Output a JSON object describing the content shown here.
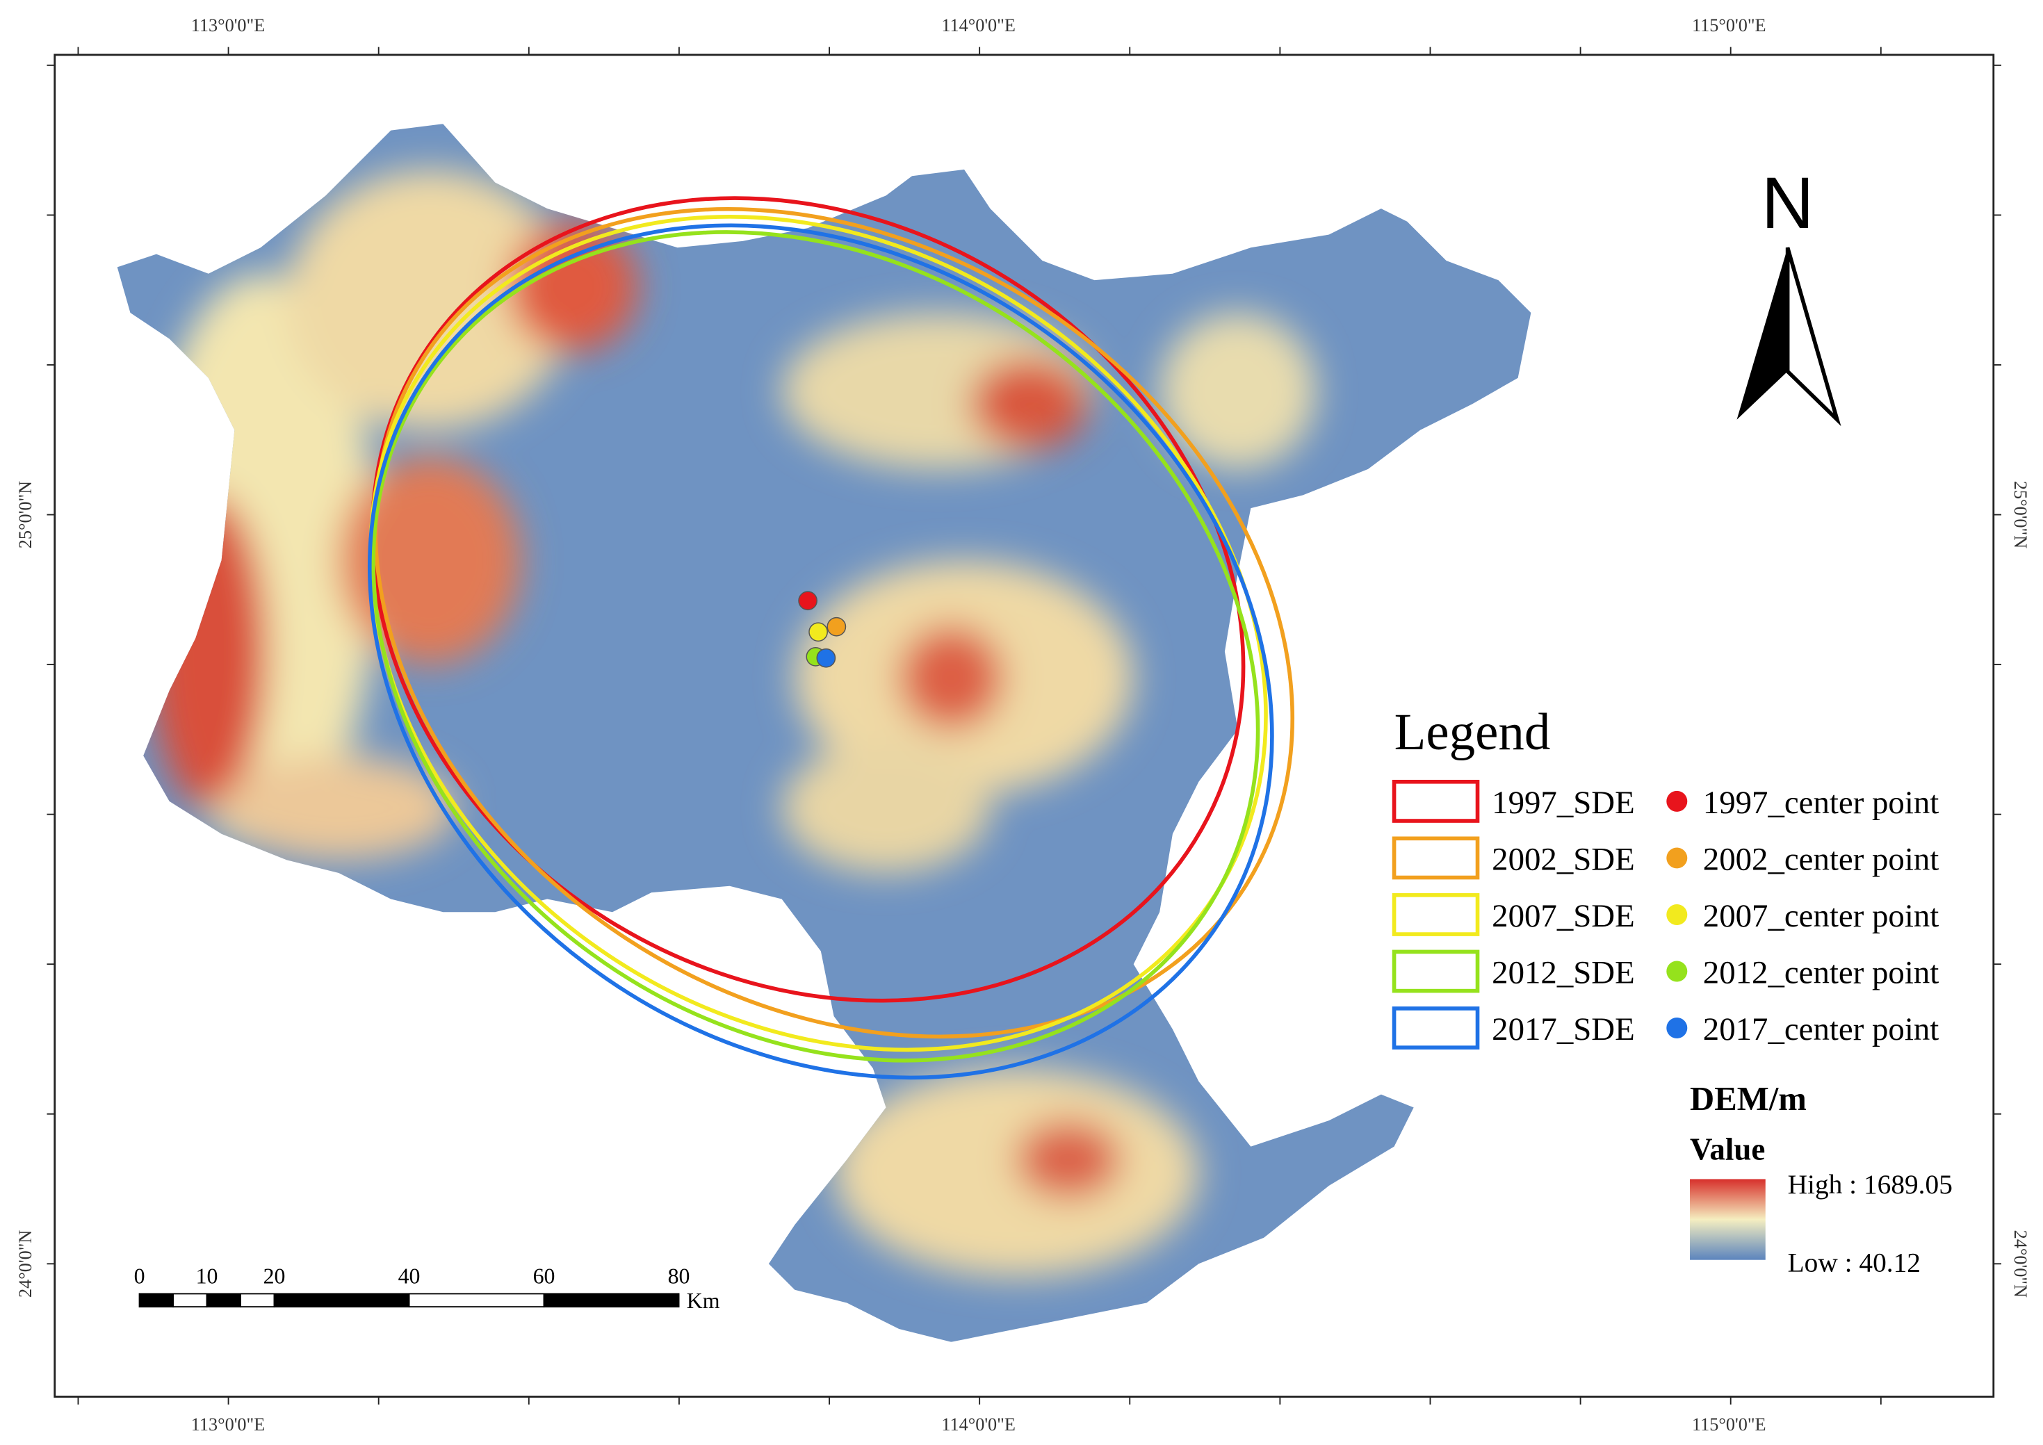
{
  "map": {
    "lon_labels": [
      "113°0'0\"E",
      "114°0'0\"E",
      "115°0'0\"E"
    ],
    "lat_labels": [
      "25°0'0\"N",
      "24°0'0\"N"
    ],
    "north": "N",
    "legend": {
      "title": "Legend",
      "items": [
        {
          "ellipse": "1997_SDE",
          "point": "1997_center point",
          "color": "#e8141c"
        },
        {
          "ellipse": "2002_SDE",
          "point": "2002_center point",
          "color": "#f2a01e"
        },
        {
          "ellipse": "2007_SDE",
          "point": "2007_center point",
          "color": "#f2ea1e"
        },
        {
          "ellipse": "2012_SDE",
          "point": "2012_center point",
          "color": "#95e21c"
        },
        {
          "ellipse": "2017_SDE",
          "point": "2017_center point",
          "color": "#1f72e6"
        }
      ]
    },
    "dem": {
      "title": "DEM/m",
      "subtitle": "Value",
      "high": "High : 1689.05",
      "low": "Low : 40.12"
    },
    "scale_bar": {
      "ticks": [
        0,
        10,
        20,
        40,
        60,
        80
      ],
      "unit": "Km"
    }
  }
}
